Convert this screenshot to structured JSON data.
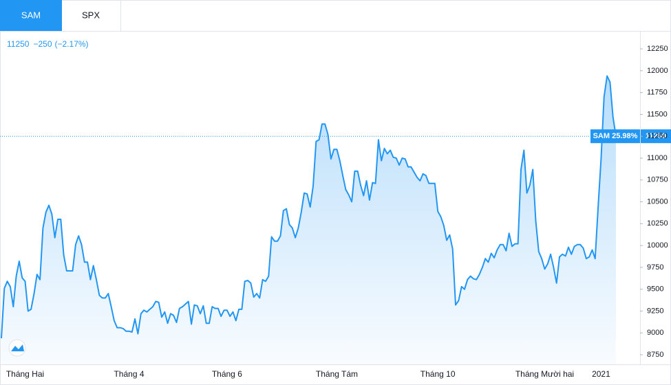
{
  "tabs": [
    "SAM",
    "SPX"
  ],
  "header": {
    "last": 11250,
    "change": "−250",
    "change_pct": "(−2.17%)"
  },
  "badge": {
    "text": "SAM 25.98%",
    "value": 11250
  },
  "chart_data": {
    "type": "area",
    "categories": [
      null,
      null,
      null,
      null,
      null,
      null,
      null,
      null,
      "Tháng Hai",
      null,
      null,
      null,
      null,
      null,
      null,
      null,
      null,
      null,
      null,
      null,
      null,
      null,
      null,
      null,
      null,
      null,
      null,
      null,
      null,
      null,
      null,
      null,
      null,
      null,
      null,
      null,
      null,
      null,
      null,
      null,
      null,
      null,
      null,
      "Tháng 4",
      null,
      null,
      null,
      null,
      null,
      null,
      null,
      null,
      null,
      null,
      null,
      null,
      null,
      null,
      null,
      null,
      null,
      null,
      null,
      null,
      null,
      null,
      null,
      null,
      null,
      null,
      null,
      null,
      null,
      null,
      null,
      null,
      "Tháng 6",
      null,
      null,
      null,
      null,
      null,
      null,
      null,
      null,
      null,
      null,
      null,
      null,
      null,
      null,
      null,
      null,
      null,
      null,
      null,
      null,
      null,
      null,
      null,
      null,
      null,
      null,
      null,
      null,
      null,
      null,
      null,
      null,
      null,
      null,
      null,
      null,
      "Tháng Tám",
      null,
      null,
      null,
      null,
      null,
      null,
      null,
      null,
      null,
      null,
      null,
      null,
      null,
      null,
      null,
      null,
      null,
      null,
      null,
      null,
      null,
      null,
      null,
      null,
      null,
      null,
      null,
      null,
      null,
      null,
      null,
      null,
      null,
      "Tháng 10",
      null,
      null,
      null,
      null,
      null,
      null,
      null,
      null,
      null,
      null,
      null,
      null,
      null,
      null,
      null,
      null,
      null,
      null,
      null,
      null,
      null,
      null,
      null,
      null,
      null,
      null,
      null,
      null,
      null,
      null,
      null,
      null,
      null,
      null,
      null,
      "Tháng Mười hai",
      null,
      null,
      null,
      null,
      null,
      null,
      null,
      null,
      null,
      null,
      null,
      null,
      null,
      null,
      null,
      null,
      null,
      null,
      "2021",
      null,
      null,
      null,
      null,
      null
    ],
    "series": [
      {
        "name": "SAM",
        "color": "#2196f3",
        "values": [
          8940,
          9510,
          9590,
          9530,
          9300,
          9650,
          9820,
          9630,
          9590,
          9250,
          9270,
          9450,
          9670,
          9610,
          10200,
          10380,
          10460,
          10360,
          10090,
          10300,
          10300,
          9890,
          9710,
          9710,
          9710,
          10010,
          10110,
          10010,
          9810,
          9810,
          9610,
          9770,
          9610,
          9430,
          9400,
          9400,
          9450,
          9300,
          9140,
          9060,
          9060,
          9050,
          9020,
          9020,
          9010,
          9160,
          8990,
          9220,
          9260,
          9240,
          9270,
          9300,
          9360,
          9350,
          9180,
          9240,
          9110,
          9220,
          9200,
          9120,
          9280,
          9300,
          9330,
          9360,
          9100,
          9320,
          9310,
          9220,
          9310,
          9110,
          9110,
          9300,
          9280,
          9280,
          9190,
          9260,
          9260,
          9190,
          9240,
          9140,
          9270,
          9270,
          9590,
          9600,
          9570,
          9410,
          9450,
          9400,
          9610,
          9590,
          9650,
          10100,
          10050,
          10050,
          10110,
          10400,
          10420,
          10240,
          10200,
          10090,
          10200,
          10380,
          10600,
          10590,
          10440,
          10680,
          11190,
          11210,
          11390,
          11390,
          11270,
          10990,
          11100,
          11100,
          10970,
          10800,
          10640,
          10580,
          10500,
          10850,
          10850,
          10690,
          10570,
          10740,
          10520,
          10720,
          10710,
          11210,
          10970,
          11110,
          11050,
          11090,
          11010,
          11000,
          10920,
          11000,
          10990,
          10900,
          10900,
          10840,
          10780,
          10740,
          10820,
          10800,
          10710,
          10710,
          10710,
          10390,
          10330,
          10230,
          10060,
          10120,
          9960,
          9320,
          9370,
          9530,
          9500,
          9610,
          9650,
          9620,
          9610,
          9670,
          9750,
          9850,
          9810,
          9910,
          9860,
          9950,
          10010,
          10010,
          9940,
          10140,
          9990,
          10020,
          10020,
          10870,
          11090,
          10600,
          10690,
          10870,
          10280,
          9930,
          9850,
          9730,
          9790,
          9900,
          9750,
          9570,
          9870,
          9900,
          9880,
          9980,
          9900,
          9990,
          10010,
          10010,
          9970,
          9850,
          9870,
          9950,
          9850,
          10440,
          10990,
          11700,
          11940,
          11870,
          11470,
          11250
        ]
      }
    ],
    "ylim": [
      8640,
      12455
    ],
    "yticks": [
      8750,
      9000,
      9250,
      9500,
      9750,
      10000,
      10250,
      10500,
      10750,
      11000,
      11250,
      11500,
      11750,
      12000,
      12250
    ]
  }
}
